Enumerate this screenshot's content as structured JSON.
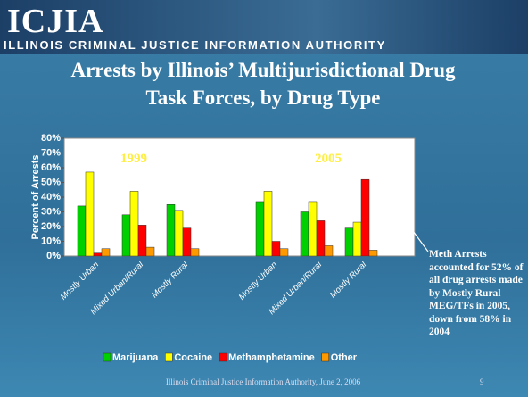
{
  "header": {
    "logo": "ICJIA",
    "organization": "ILLINOIS CRIMINAL JUSTICE INFORMATION AUTHORITY"
  },
  "chart_data": {
    "type": "bar",
    "title": "Arrests by Illinois’ Multijurisdictional Drug Task Forces, by Drug Type",
    "y_label": "Percent of Arrests",
    "categories": [
      "Mostly Urban",
      "Mixed Urban/Rural",
      "Mostly Rural",
      null,
      "Mostly Urban",
      "Mixed Urban/Rural",
      "Mostly Rural"
    ],
    "series": [
      {
        "name": "Marijuana",
        "color": "#00d000",
        "values": [
          34,
          28,
          35,
          null,
          37,
          30,
          19
        ]
      },
      {
        "name": "Cocaine",
        "color": "#ffff00",
        "values": [
          57,
          44,
          31,
          null,
          44,
          37,
          23
        ]
      },
      {
        "name": "Methamphetamine",
        "color": "#ff0000",
        "values": [
          2,
          21,
          19,
          null,
          10,
          24,
          52
        ]
      },
      {
        "name": "Other",
        "color": "#ff9900",
        "values": [
          5,
          6,
          5,
          null,
          5,
          7,
          4
        ]
      }
    ],
    "ylim": [
      0,
      80
    ],
    "yticks": [
      {
        "value": 0,
        "label": "0%"
      },
      {
        "value": 10,
        "label": "10%"
      },
      {
        "value": 20,
        "label": "20%"
      },
      {
        "value": 30,
        "label": "30%"
      },
      {
        "value": 40,
        "label": "40%"
      },
      {
        "value": 50,
        "label": "50%"
      },
      {
        "value": 60,
        "label": "60%"
      },
      {
        "value": 70,
        "label": "70%"
      },
      {
        "value": 80,
        "label": "80%"
      }
    ],
    "grid": false,
    "legend": "bottom",
    "annotations": [
      "1999",
      "2005",
      "Meth Arrests accounted for 52% of all drug arrests made by Mostly Rural MEG/TFs in 2005, down from 58% in 2004"
    ]
  },
  "footer": {
    "text": "Illinois Criminal Justice Information Authority, June 2, 2006",
    "page": "9"
  }
}
